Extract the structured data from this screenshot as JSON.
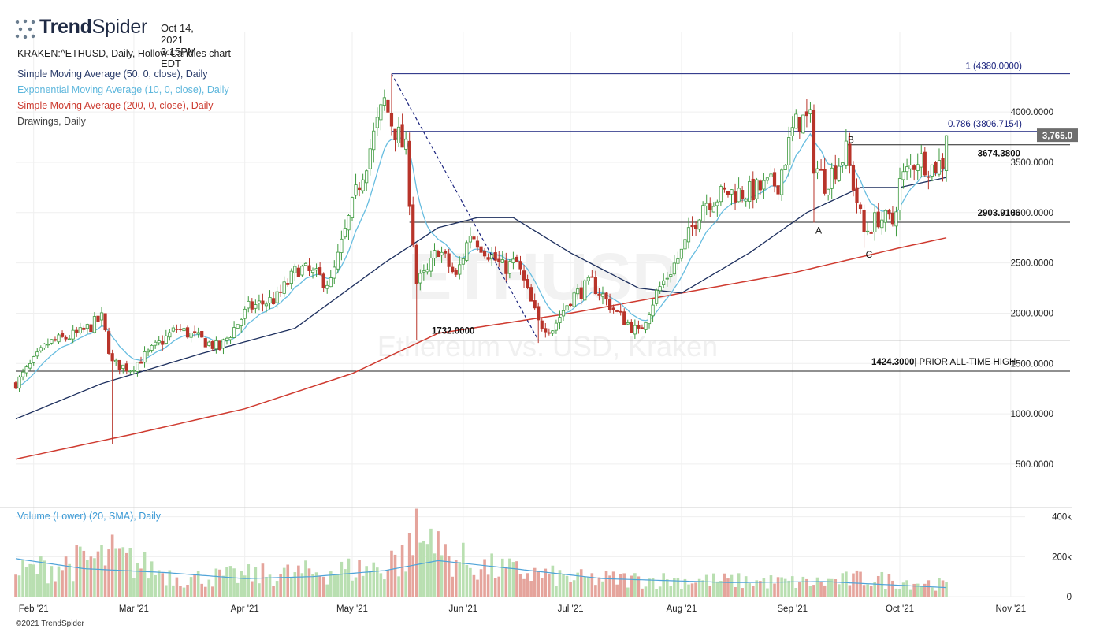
{
  "brand": {
    "name_bold": "Trend",
    "name_light": "Spider",
    "timestamp": "Oct 14, 2021 3:15PM EDT"
  },
  "legend": {
    "symbol": "KRAKEN:^ETHUSD, Daily, Hollow Candles chart",
    "sma50": "Simple Moving Average (50, 0, close), Daily",
    "ema10": "Exponential Moving Average (10, 0, close), Daily",
    "sma200": "Simple Moving Average (200, 0, close), Daily",
    "drawings": "Drawings, Daily",
    "volume": "Volume (Lower) (20, SMA), Daily"
  },
  "watermark": {
    "symbol": "ETHUSD",
    "name": "Ethereum vs. USD, Kraken"
  },
  "copyright": "©2021 TrendSpider",
  "colors": {
    "up": "#3e9a3e",
    "down": "#b8342a",
    "sma50": "#1d2f5e",
    "ema10": "#67bde0",
    "sma200": "#cf3b30",
    "vol_up": "#b9dfb1",
    "vol_down": "#e5a49c",
    "vol_sma": "#4fa3d8",
    "fib_line": "#1a237e",
    "price_tag": "#6e6e6e"
  },
  "chart_data": {
    "type": "candlestick",
    "x_range": [
      "2021-01-27",
      "2021-11-05"
    ],
    "y_axis": {
      "ylim": [
        100,
        4800
      ],
      "ticks": [
        4000,
        3500,
        3000,
        2500,
        2000,
        1500,
        1000,
        500
      ],
      "tick_labels": [
        "4000.0000",
        "3500.0000",
        "3000.0000",
        "2500.0000",
        "2000.0000",
        "1500.0000",
        "1000.0000",
        "500.0000"
      ]
    },
    "x_axis": {
      "ticks": [
        "2021-02-01",
        "2021-03-01",
        "2021-04-01",
        "2021-05-01",
        "2021-06-01",
        "2021-07-01",
        "2021-08-01",
        "2021-09-01",
        "2021-10-01",
        "2021-11-01"
      ],
      "tick_labels": [
        "Feb '21",
        "Mar '21",
        "Apr '21",
        "May '21",
        "Jun '21",
        "Jul '21",
        "Aug '21",
        "Sep '21",
        "Oct '21",
        "Nov '21"
      ]
    },
    "volume_axis": {
      "ylim": [
        0,
        450000
      ],
      "ticks": [
        400000,
        200000,
        0
      ],
      "tick_labels": [
        "400k",
        "200k",
        "0"
      ]
    },
    "price_anchors": [
      [
        "2021-01-27",
        1300
      ],
      [
        "2021-02-05",
        1700
      ],
      [
        "2021-02-14",
        1800
      ],
      [
        "2021-02-20",
        1950
      ],
      [
        "2021-02-23",
        1500
      ],
      [
        "2021-02-28",
        1450
      ],
      [
        "2021-03-13",
        1850
      ],
      [
        "2021-03-25",
        1650
      ],
      [
        "2021-04-02",
        2050
      ],
      [
        "2021-04-10",
        2150
      ],
      [
        "2021-04-16",
        2450
      ],
      [
        "2021-04-25",
        2300
      ],
      [
        "2021-05-03",
        3300
      ],
      [
        "2021-05-10",
        4100
      ],
      [
        "2021-05-12",
        3900
      ],
      [
        "2021-05-16",
        3600
      ],
      [
        "2021-05-19",
        2300
      ],
      [
        "2021-05-22",
        2400
      ],
      [
        "2021-05-25",
        2650
      ],
      [
        "2021-05-30",
        2350
      ],
      [
        "2021-06-03",
        2800
      ],
      [
        "2021-06-12",
        2450
      ],
      [
        "2021-06-16",
        2500
      ],
      [
        "2021-06-22",
        1900
      ],
      [
        "2021-06-26",
        1850
      ],
      [
        "2021-07-01",
        2150
      ],
      [
        "2021-07-07",
        2300
      ],
      [
        "2021-07-14",
        2000
      ],
      [
        "2021-07-20",
        1800
      ],
      [
        "2021-07-25",
        2200
      ],
      [
        "2021-08-01",
        2600
      ],
      [
        "2021-08-07",
        3100
      ],
      [
        "2021-08-14",
        3200
      ],
      [
        "2021-08-20",
        3200
      ],
      [
        "2021-08-28",
        3300
      ],
      [
        "2021-09-01",
        3800
      ],
      [
        "2021-09-03",
        3930
      ],
      [
        "2021-09-06",
        3900
      ],
      [
        "2021-09-07",
        3500
      ],
      [
        "2021-09-10",
        3300
      ],
      [
        "2021-09-16",
        3600
      ],
      [
        "2021-09-21",
        2800
      ],
      [
        "2021-09-25",
        2950
      ],
      [
        "2021-09-29",
        2900
      ],
      [
        "2021-10-01",
        3300
      ],
      [
        "2021-10-06",
        3550
      ],
      [
        "2021-10-10",
        3450
      ],
      [
        "2021-10-13",
        3500
      ],
      [
        "2021-10-14",
        3765
      ]
    ],
    "spikes": [
      {
        "date": "2021-02-23",
        "low": 700
      },
      {
        "date": "2021-05-19",
        "low": 1732
      },
      {
        "date": "2021-06-22",
        "low": 1705
      },
      {
        "date": "2021-09-07",
        "low": 2900
      },
      {
        "date": "2021-09-21",
        "low": 2650
      },
      {
        "date": "2021-05-12",
        "high": 4380
      }
    ],
    "sma200_anchors": [
      [
        "2021-01-27",
        550
      ],
      [
        "2021-03-01",
        800
      ],
      [
        "2021-04-01",
        1050
      ],
      [
        "2021-05-01",
        1400
      ],
      [
        "2021-05-25",
        1800
      ],
      [
        "2021-07-01",
        2000
      ],
      [
        "2021-08-01",
        2200
      ],
      [
        "2021-09-01",
        2400
      ],
      [
        "2021-10-01",
        2650
      ],
      [
        "2021-10-14",
        2750
      ]
    ],
    "sma50_anchors": [
      [
        "2021-01-27",
        950
      ],
      [
        "2021-02-20",
        1300
      ],
      [
        "2021-03-20",
        1600
      ],
      [
        "2021-04-15",
        1850
      ],
      [
        "2021-05-10",
        2500
      ],
      [
        "2021-05-25",
        2850
      ],
      [
        "2021-06-05",
        2950
      ],
      [
        "2021-06-15",
        2950
      ],
      [
        "2021-07-01",
        2600
      ],
      [
        "2021-07-20",
        2250
      ],
      [
        "2021-08-01",
        2200
      ],
      [
        "2021-08-20",
        2600
      ],
      [
        "2021-09-05",
        3000
      ],
      [
        "2021-09-20",
        3250
      ],
      [
        "2021-10-01",
        3250
      ],
      [
        "2021-10-14",
        3350
      ]
    ],
    "volume_anchors": [
      [
        "2021-01-27",
        120000
      ],
      [
        "2021-02-23",
        200000
      ],
      [
        "2021-03-15",
        90000
      ],
      [
        "2021-04-20",
        120000
      ],
      [
        "2021-05-12",
        150000
      ],
      [
        "2021-05-20",
        260000
      ],
      [
        "2021-06-05",
        150000
      ],
      [
        "2021-07-01",
        90000
      ],
      [
        "2021-08-10",
        80000
      ],
      [
        "2021-09-07",
        70000
      ],
      [
        "2021-09-21",
        90000
      ],
      [
        "2021-10-14",
        60000
      ]
    ],
    "volume_spikes": [
      {
        "date": "2021-02-23",
        "value": 310000
      },
      {
        "date": "2021-05-12",
        "value": 230000
      },
      {
        "date": "2021-05-19",
        "value": 440000
      },
      {
        "date": "2021-05-23",
        "value": 340000
      },
      {
        "date": "2021-05-21",
        "value": 280000
      }
    ],
    "volume_sma_anchors": [
      [
        "2021-01-27",
        190000
      ],
      [
        "2021-02-15",
        140000
      ],
      [
        "2021-03-10",
        120000
      ],
      [
        "2021-04-01",
        90000
      ],
      [
        "2021-04-20",
        100000
      ],
      [
        "2021-05-10",
        130000
      ],
      [
        "2021-05-25",
        180000
      ],
      [
        "2021-06-15",
        140000
      ],
      [
        "2021-07-10",
        90000
      ],
      [
        "2021-08-15",
        70000
      ],
      [
        "2021-09-10",
        75000
      ],
      [
        "2021-10-14",
        45000
      ]
    ],
    "horizontal_lines": [
      {
        "price": 4380,
        "from": "2021-05-12",
        "label": "1 (4380.0000)"
      },
      {
        "price": 3806.7154,
        "from": "2021-05-12",
        "label": "0.786 (3806.7154)"
      },
      {
        "price": 3674.38,
        "from": "2021-09-16",
        "label": "3674.3800"
      },
      {
        "price": 2903.9106,
        "from": "2021-05-17",
        "label": "2903.9106"
      },
      {
        "price": 1732,
        "from": "2021-05-19",
        "label": "1732.0000"
      },
      {
        "price": 1424.3,
        "from": "2021-01-27",
        "label": "1424.3000",
        "suffix": "| PRIOR ALL-TIME HIGH"
      }
    ],
    "dashed_trendline": {
      "from": [
        "2021-05-12",
        4380
      ],
      "to": [
        "2021-06-22",
        1732
      ]
    },
    "abc_labels": [
      {
        "text": "A",
        "date": "2021-09-07",
        "price": 2790
      },
      {
        "text": "B",
        "date": "2021-09-16",
        "price": 3690
      },
      {
        "text": "C",
        "date": "2021-09-21",
        "price": 2550
      }
    ],
    "last_price": {
      "value": 3765,
      "label": "3,765.0"
    }
  }
}
